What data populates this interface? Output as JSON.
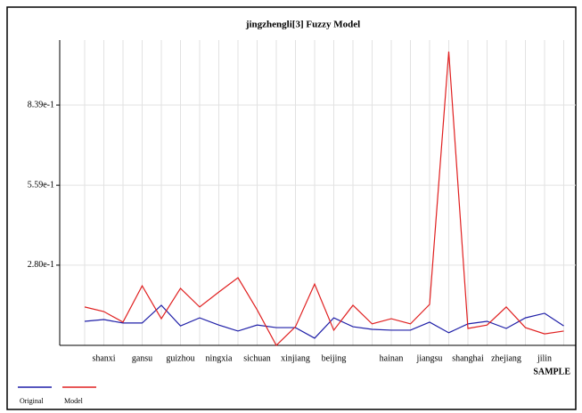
{
  "chart_data": {
    "type": "line",
    "title": "jingzhengli[3] Fuzzy Model",
    "x_label": "SAMPLE",
    "categories": [
      null,
      "shanxi",
      null,
      "gansu",
      null,
      "guizhou",
      null,
      "ningxia",
      null,
      "sichuan",
      null,
      "xinjiang",
      null,
      "beijing",
      null,
      null,
      "hainan",
      null,
      "jiangsu",
      null,
      "shanghai",
      null,
      "zhejiang",
      null,
      "jilin",
      null
    ],
    "series": [
      {
        "name": "Original",
        "color": "#1f1fa8",
        "values": [
          0.084,
          0.09,
          0.078,
          0.078,
          0.14,
          0.068,
          0.096,
          0.071,
          0.05,
          0.071,
          0.062,
          0.062,
          0.025,
          0.096,
          0.065,
          0.056,
          0.053,
          0.053,
          0.081,
          0.044,
          0.075,
          0.084,
          0.059,
          0.096,
          0.112,
          0.068
        ]
      },
      {
        "name": "Model",
        "color": "#e02020",
        "values": [
          0.134,
          0.118,
          0.081,
          0.208,
          0.093,
          0.199,
          0.134,
          0.186,
          0.236,
          0.124,
          0.0,
          0.065,
          0.214,
          0.053,
          0.14,
          0.075,
          0.093,
          0.075,
          0.143,
          1.026,
          0.059,
          0.071,
          0.134,
          0.062,
          0.04,
          0.05
        ]
      }
    ],
    "ylim": [
      0,
      1.066
    ],
    "yticks": [
      {
        "value": 0.28,
        "label": "2.80e-1"
      },
      {
        "value": 0.559,
        "label": "5.59e-1"
      },
      {
        "value": 0.839,
        "label": "8.39e-1"
      }
    ],
    "grid": true,
    "legend": "bottom-left"
  }
}
